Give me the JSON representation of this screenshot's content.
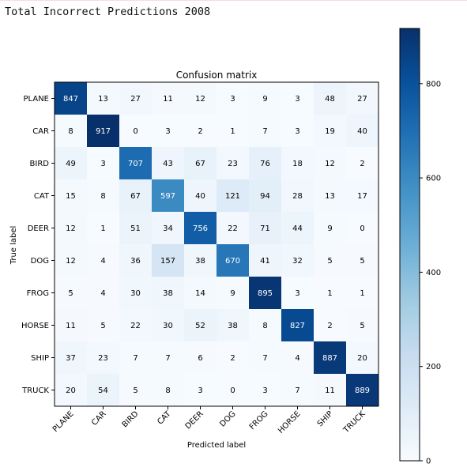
{
  "page": {
    "title": "Total Incorrect Predictions 2008"
  },
  "chart_data": {
    "type": "heatmap",
    "title": "Confusion matrix",
    "xlabel": "Predicted label",
    "ylabel": "True label",
    "x_categories": [
      "PLANE",
      "CAR",
      "BIRD",
      "CAT",
      "DEER",
      "DOG",
      "FROG",
      "HORSE",
      "SHIP",
      "TRUCK"
    ],
    "y_categories": [
      "PLANE",
      "CAR",
      "BIRD",
      "CAT",
      "DEER",
      "DOG",
      "FROG",
      "HORSE",
      "SHIP",
      "TRUCK"
    ],
    "values": [
      [
        847,
        13,
        27,
        11,
        12,
        3,
        9,
        3,
        48,
        27
      ],
      [
        8,
        917,
        0,
        3,
        2,
        1,
        7,
        3,
        19,
        40
      ],
      [
        49,
        3,
        707,
        43,
        67,
        23,
        76,
        18,
        12,
        2
      ],
      [
        15,
        8,
        67,
        597,
        40,
        121,
        94,
        28,
        13,
        17
      ],
      [
        12,
        1,
        51,
        34,
        756,
        22,
        71,
        44,
        9,
        0
      ],
      [
        12,
        4,
        36,
        157,
        38,
        670,
        41,
        32,
        5,
        5
      ],
      [
        5,
        4,
        30,
        38,
        14,
        9,
        895,
        3,
        1,
        1
      ],
      [
        11,
        5,
        22,
        30,
        52,
        38,
        8,
        827,
        2,
        5
      ],
      [
        37,
        23,
        7,
        7,
        6,
        2,
        7,
        4,
        887,
        20
      ],
      [
        20,
        54,
        5,
        8,
        3,
        0,
        3,
        7,
        11,
        889
      ]
    ],
    "colormap": "Blues",
    "color_range": [
      0,
      917
    ],
    "colorbar": {
      "ticks": [
        0,
        200,
        400,
        600,
        800
      ]
    },
    "grid": false,
    "text_color_light": "#ffffff",
    "text_color_dark": "#000000"
  }
}
